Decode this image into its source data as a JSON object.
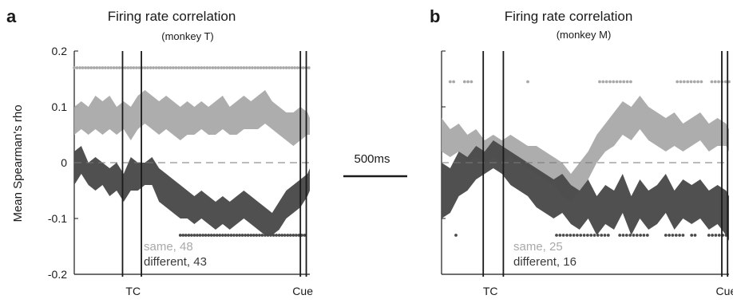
{
  "scale_bar": {
    "label": "500ms"
  },
  "colors": {
    "same": "#a9a9a9",
    "different": "#4a4a4a",
    "axis": "#1a1a1a"
  },
  "chart_data": [
    {
      "type": "area",
      "panel_label": "a",
      "title": "Firing rate correlation",
      "subtitle": "(monkey T)",
      "ylabel": "Mean Spearman's rho",
      "ylim": [
        -0.2,
        0.2
      ],
      "yticks": [
        {
          "value": 0.2,
          "label": "0.2"
        },
        {
          "value": 0.1,
          "label": "0.1"
        },
        {
          "value": 0,
          "label": "0"
        },
        {
          "value": -0.1,
          "label": "-0.1"
        },
        {
          "value": -0.2,
          "label": "-0.2"
        }
      ],
      "xlim": [
        0,
        100
      ],
      "events": [
        {
          "name": "TC",
          "label": "TC",
          "x": [
            20.5,
            28.5
          ],
          "label_x": 25
        },
        {
          "name": "Cue",
          "label": "Cue",
          "x": [
            96,
            98.5
          ],
          "label_x": 97
        }
      ],
      "zero_line": true,
      "legend": [
        {
          "name": "same",
          "label": "same, 48"
        },
        {
          "name": "different",
          "label": "different, 43"
        }
      ],
      "series": [
        {
          "name": "same",
          "x": [
            0,
            3,
            6,
            9,
            12,
            15,
            18,
            21,
            24,
            27,
            30,
            33,
            36,
            39,
            42,
            45,
            48,
            51,
            54,
            57,
            60,
            63,
            66,
            69,
            72,
            75,
            78,
            81,
            84,
            87,
            90,
            93,
            96,
            99,
            100
          ],
          "upper": [
            0.1,
            0.11,
            0.1,
            0.12,
            0.11,
            0.12,
            0.1,
            0.11,
            0.1,
            0.12,
            0.13,
            0.12,
            0.11,
            0.12,
            0.11,
            0.1,
            0.11,
            0.1,
            0.11,
            0.1,
            0.11,
            0.12,
            0.1,
            0.11,
            0.12,
            0.11,
            0.12,
            0.13,
            0.11,
            0.1,
            0.09,
            0.09,
            0.1,
            0.09,
            0.08
          ],
          "lower": [
            0.05,
            0.06,
            0.05,
            0.06,
            0.05,
            0.06,
            0.05,
            0.06,
            0.04,
            0.06,
            0.07,
            0.06,
            0.05,
            0.06,
            0.05,
            0.04,
            0.05,
            0.05,
            0.06,
            0.05,
            0.05,
            0.06,
            0.05,
            0.05,
            0.06,
            0.06,
            0.06,
            0.07,
            0.06,
            0.05,
            0.04,
            0.03,
            0.04,
            0.05,
            0.05
          ]
        },
        {
          "name": "different",
          "x": [
            0,
            3,
            6,
            9,
            12,
            15,
            18,
            21,
            24,
            27,
            30,
            33,
            36,
            39,
            42,
            45,
            48,
            51,
            54,
            57,
            60,
            63,
            66,
            69,
            72,
            75,
            78,
            81,
            84,
            87,
            90,
            93,
            96,
            99,
            100
          ],
          "upper": [
            0.02,
            0.03,
            0.0,
            0.01,
            0.0,
            -0.01,
            0.0,
            -0.02,
            0.01,
            0.0,
            0.0,
            0.01,
            -0.01,
            -0.02,
            -0.03,
            -0.04,
            -0.05,
            -0.06,
            -0.05,
            -0.06,
            -0.07,
            -0.06,
            -0.07,
            -0.06,
            -0.05,
            -0.06,
            -0.07,
            -0.08,
            -0.09,
            -0.07,
            -0.05,
            -0.04,
            -0.03,
            -0.02,
            -0.01
          ],
          "lower": [
            -0.04,
            -0.02,
            -0.04,
            -0.05,
            -0.04,
            -0.06,
            -0.05,
            -0.07,
            -0.05,
            -0.05,
            -0.04,
            -0.04,
            -0.07,
            -0.08,
            -0.09,
            -0.1,
            -0.1,
            -0.11,
            -0.1,
            -0.11,
            -0.12,
            -0.11,
            -0.12,
            -0.11,
            -0.1,
            -0.11,
            -0.12,
            -0.13,
            -0.13,
            -0.12,
            -0.1,
            -0.09,
            -0.08,
            -0.06,
            -0.05
          ]
        }
      ],
      "significance": [
        {
          "series": "same",
          "y": 0.17,
          "ranges": [
            [
              0,
              100
            ]
          ]
        },
        {
          "series": "different",
          "y": -0.13,
          "ranges": [
            [
              45,
              98
            ]
          ]
        }
      ]
    },
    {
      "type": "area",
      "panel_label": "b",
      "title": "Firing rate correlation",
      "subtitle": "(monkey M)",
      "ylabel": "",
      "ylim": [
        -0.2,
        0.2
      ],
      "yticks": [],
      "xlim": [
        0,
        100
      ],
      "events": [
        {
          "name": "TC",
          "label": "TC",
          "x": [
            14.5,
            21.5
          ],
          "label_x": 17
        },
        {
          "name": "Cue",
          "label": "Cue",
          "x": [
            97.5,
            99.5
          ],
          "label_x": 99
        }
      ],
      "zero_line": true,
      "legend": [
        {
          "name": "same",
          "label": "same, 25"
        },
        {
          "name": "different",
          "label": "different, 16"
        }
      ],
      "series": [
        {
          "name": "same",
          "x": [
            0,
            3,
            6,
            9,
            12,
            15,
            18,
            21,
            24,
            27,
            30,
            33,
            36,
            39,
            42,
            45,
            48,
            51,
            54,
            57,
            60,
            63,
            66,
            69,
            72,
            75,
            78,
            81,
            84,
            87,
            90,
            93,
            96,
            99,
            100
          ],
          "upper": [
            0.08,
            0.06,
            0.07,
            0.05,
            0.06,
            0.04,
            0.05,
            0.04,
            0.05,
            0.04,
            0.03,
            0.03,
            0.02,
            0.01,
            0.0,
            -0.02,
            0.0,
            0.02,
            0.05,
            0.07,
            0.09,
            0.11,
            0.1,
            0.12,
            0.1,
            0.09,
            0.08,
            0.09,
            0.07,
            0.08,
            0.09,
            0.07,
            0.08,
            0.07,
            0.06
          ],
          "lower": [
            0.02,
            0.01,
            0.02,
            0.0,
            0.01,
            0.0,
            0.01,
            0.0,
            0.01,
            0.0,
            -0.01,
            -0.02,
            -0.03,
            -0.04,
            -0.06,
            -0.07,
            -0.05,
            -0.03,
            0.0,
            0.02,
            0.03,
            0.05,
            0.04,
            0.06,
            0.04,
            0.03,
            0.02,
            0.03,
            0.02,
            0.03,
            0.04,
            0.02,
            0.03,
            0.03,
            0.02
          ]
        },
        {
          "name": "different",
          "x": [
            0,
            3,
            6,
            9,
            12,
            15,
            18,
            21,
            24,
            27,
            30,
            33,
            36,
            39,
            42,
            45,
            48,
            51,
            54,
            57,
            60,
            63,
            66,
            69,
            72,
            75,
            78,
            81,
            84,
            87,
            90,
            93,
            96,
            99,
            100
          ],
          "upper": [
            0.0,
            -0.01,
            0.02,
            0.01,
            0.03,
            0.02,
            0.04,
            0.03,
            0.02,
            0.01,
            0.0,
            -0.01,
            -0.02,
            -0.03,
            -0.02,
            -0.04,
            -0.05,
            -0.03,
            -0.06,
            -0.04,
            -0.05,
            -0.02,
            -0.06,
            -0.03,
            -0.05,
            -0.04,
            -0.02,
            -0.05,
            -0.03,
            -0.04,
            -0.03,
            -0.05,
            -0.04,
            -0.05,
            -0.06
          ],
          "lower": [
            -0.1,
            -0.09,
            -0.06,
            -0.05,
            -0.03,
            -0.02,
            -0.01,
            -0.02,
            -0.04,
            -0.05,
            -0.06,
            -0.08,
            -0.09,
            -0.1,
            -0.09,
            -0.11,
            -0.12,
            -0.1,
            -0.13,
            -0.11,
            -0.12,
            -0.09,
            -0.13,
            -0.1,
            -0.12,
            -0.11,
            -0.09,
            -0.12,
            -0.1,
            -0.11,
            -0.1,
            -0.12,
            -0.11,
            -0.13,
            -0.14
          ]
        }
      ],
      "significance": [
        {
          "series": "same",
          "y": 0.145,
          "ranges": [
            [
              3,
              5
            ],
            [
              8,
              11
            ],
            [
              30,
              31
            ],
            [
              55,
              66
            ],
            [
              82,
              91
            ],
            [
              94,
              100
            ]
          ]
        },
        {
          "series": "different",
          "y": -0.13,
          "ranges": [
            [
              5,
              6
            ],
            [
              40,
              58
            ],
            [
              62,
              72
            ],
            [
              78,
              84
            ],
            [
              87,
              89
            ],
            [
              93,
              100
            ]
          ]
        }
      ]
    }
  ]
}
